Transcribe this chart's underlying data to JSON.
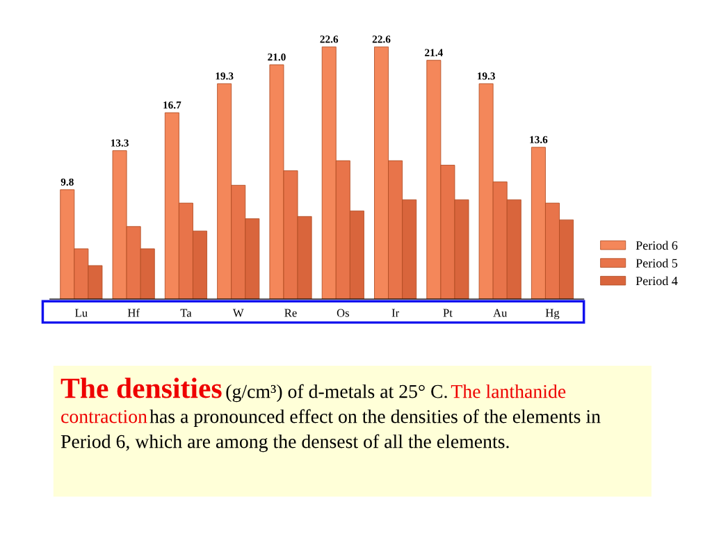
{
  "chart_data": {
    "type": "bar",
    "title": "The densities",
    "subtitle": "(g/cm³) of d-metals at 25° C.",
    "annotations": [
      "The lanthanide contraction",
      "has a pronounced effect on the densities of the elements in Period 6, which are among the densest of all the elements."
    ],
    "categories": [
      "Lu",
      "Hf",
      "Ta",
      "W",
      "Re",
      "Os",
      "Ir",
      "Pt",
      "Au",
      "Hg"
    ],
    "series": [
      {
        "name": "Period 6",
        "color": "#f4875a",
        "values": [
          9.8,
          13.3,
          16.7,
          19.3,
          21.0,
          22.6,
          22.6,
          21.4,
          19.3,
          13.6
        ],
        "value_labels": [
          "9.8",
          "13.3",
          "16.7",
          "19.3",
          "21.0",
          "22.6",
          "22.6",
          "21.4",
          "19.3",
          "13.6"
        ]
      },
      {
        "name": "Period 5",
        "color": "#e8744a",
        "values": [
          4.5,
          6.5,
          8.6,
          10.2,
          11.5,
          12.4,
          12.4,
          12.0,
          10.5,
          8.6
        ]
      },
      {
        "name": "Period 4",
        "color": "#d9653c",
        "values": [
          3.0,
          4.5,
          6.1,
          7.2,
          7.4,
          7.9,
          8.9,
          8.9,
          8.9,
          7.1
        ]
      }
    ],
    "legend": "bottom right",
    "tick_labels": "x",
    "grid": false
  }
}
